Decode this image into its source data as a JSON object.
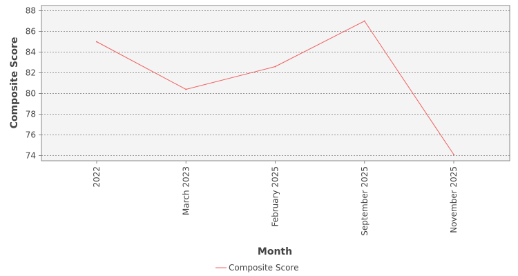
{
  "chart_data": {
    "type": "line",
    "title": "",
    "xlabel": "Month",
    "ylabel": "Composite Score",
    "categories": [
      "2022",
      "March 2023",
      "February 2025",
      "September 2025",
      "November 2025"
    ],
    "series": [
      {
        "name": "Composite Score",
        "values": [
          85.0,
          80.4,
          82.6,
          87.0,
          74.1
        ],
        "color": "#f06060"
      }
    ],
    "yticks": [
      "74",
      "76",
      "78",
      "80",
      "82",
      "84",
      "86",
      "88"
    ],
    "ylim": [
      73.5,
      88.5
    ],
    "grid": true,
    "legend_position": "bottom-center",
    "colors": {
      "plot_background": "#f4f4f4",
      "grid": "#777777",
      "axis": "#888888",
      "text": "#444444"
    }
  }
}
